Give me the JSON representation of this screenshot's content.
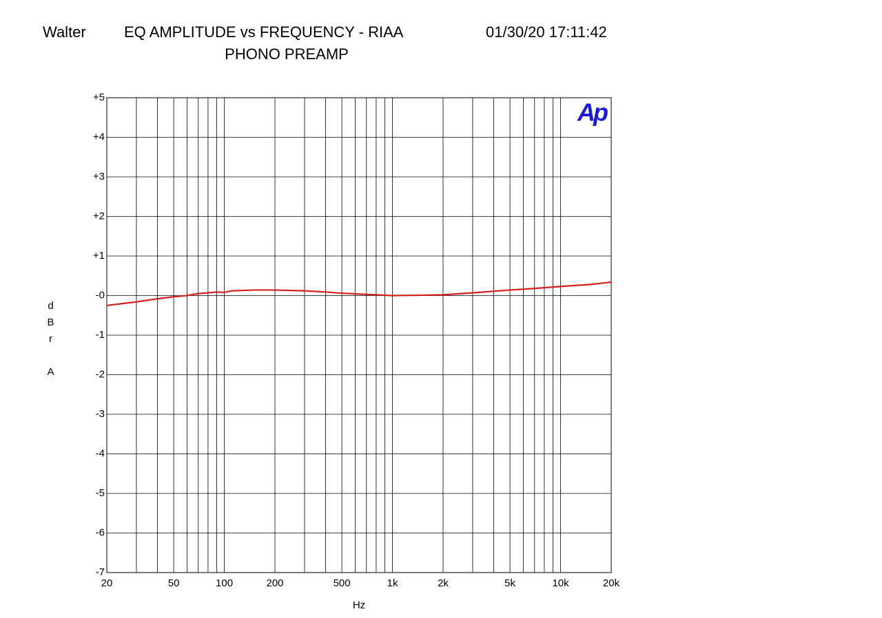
{
  "chart_data": {
    "type": "line",
    "header_left": "Walter",
    "title": "EQ AMPLITUDE vs FREQUENCY - RIAA",
    "timestamp": "01/30/20 17:11:42",
    "subtitle": "PHONO PREAMP",
    "logo": "Ap",
    "x_label": "Hz",
    "y_label": "dBr A",
    "xscale": "log",
    "xlim": [
      20,
      20000
    ],
    "ylim": [
      -7,
      5
    ],
    "xticks": [
      20,
      50,
      100,
      200,
      500,
      {
        "value": 1000,
        "label": "1k"
      },
      {
        "value": 2000,
        "label": "2k"
      },
      {
        "value": 5000,
        "label": "5k"
      },
      {
        "value": 10000,
        "label": "10k"
      },
      {
        "value": 20000,
        "label": "20k"
      }
    ],
    "xgrid": [
      20,
      30,
      40,
      50,
      60,
      70,
      80,
      90,
      100,
      200,
      300,
      400,
      500,
      600,
      700,
      800,
      900,
      1000,
      2000,
      3000,
      4000,
      5000,
      6000,
      7000,
      8000,
      9000,
      10000,
      20000
    ],
    "yticks": [
      {
        "value": 5,
        "label": "+5"
      },
      {
        "value": 4,
        "label": "+4"
      },
      {
        "value": 3,
        "label": "+3"
      },
      {
        "value": 2,
        "label": "+2"
      },
      {
        "value": 1,
        "label": "+1"
      },
      {
        "value": 0,
        "label": "-0"
      },
      -1,
      -2,
      -3,
      -4,
      -5,
      -6,
      -7
    ],
    "grid": true,
    "x": [
      20,
      25,
      30,
      40,
      50,
      60,
      70,
      80,
      90,
      100,
      110,
      150,
      200,
      300,
      400,
      500,
      700,
      1000,
      1500,
      2000,
      3000,
      5000,
      7000,
      10000,
      15000,
      20000
    ],
    "series": [
      {
        "name": "EQ",
        "color": "#d42020",
        "values": [
          -0.25,
          -0.2,
          -0.16,
          -0.08,
          -0.03,
          0.0,
          0.05,
          0.07,
          0.09,
          0.08,
          0.12,
          0.14,
          0.14,
          0.12,
          0.09,
          0.06,
          0.03,
          0.0,
          0.01,
          0.02,
          0.07,
          0.14,
          0.18,
          0.23,
          0.28,
          0.34
        ]
      }
    ]
  }
}
